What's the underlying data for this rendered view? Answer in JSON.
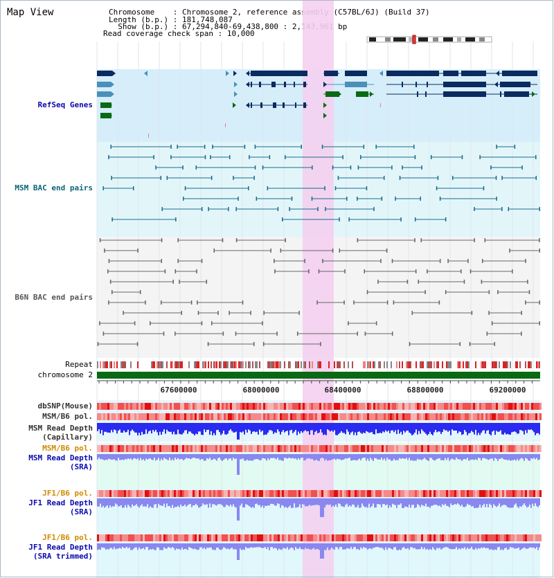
{
  "title": "Map View",
  "header": {
    "chromosome_label": "Chromosome",
    "chromosome_value": "Chromosome 2, reference assembly (C57BL/6J) (Build 37)",
    "length_label": "Length (b.p.)",
    "length_value": "181,748,087",
    "show_label": "Show (b.p.)",
    "show_value": "67,294,840-69,438,800 : 2,143,961 bp",
    "coverage_label": "Read coverage check span",
    "coverage_value": "10,000"
  },
  "tracks": {
    "refseq": "RefSeq Genes",
    "msm_bac": "MSM BAC end pairs",
    "b6n_bac": "B6N BAC end pairs",
    "repeat": "Repeat",
    "chromosome": "chromosome 2",
    "dbsnp": "dbSNP(Mouse)",
    "msm_b6_pol": "MSM/B6 pol.",
    "msm_depth_cap_1": "MSM Read Depth",
    "msm_depth_cap_2": "(Capillary)",
    "msm_b6_pol_2": "MSM/B6 pol.",
    "msm_depth_sra_1": "MSM Read Depth",
    "msm_depth_sra_2": "(SRA)",
    "jf1_b6_pol": "JF1/B6 pol.",
    "jf1_depth_sra_1": "JF1 Read Depth",
    "jf1_depth_sra_2": "(SRA)",
    "jf1_b6_pol_2": "JF1/B6 pol.",
    "jf1_depth_trim_1": "JF1 Read Depth",
    "jf1_depth_trim_2": "(SRA trimmed)"
  },
  "axis": {
    "ticks": [
      "67600000",
      "68000000",
      "68400000",
      "68800000",
      "69200000"
    ]
  },
  "colors": {
    "highlight": "#f4d0f0",
    "refseq_bg": "#d6eefa",
    "msm_bg": "#e2f6fa",
    "b6n_bg": "#f4f4f4",
    "depth_bg": "#e2fbf2",
    "gene_navy": "#0a2a60",
    "gene_blue": "#4a90b8",
    "gene_green": "#0a6a14",
    "msm_pair": "#1a6a8a",
    "b6n_pair": "#666666",
    "depth_blue": "#2a2af0",
    "depth_light": "#8888f0",
    "pol_red": "#f06060"
  }
}
